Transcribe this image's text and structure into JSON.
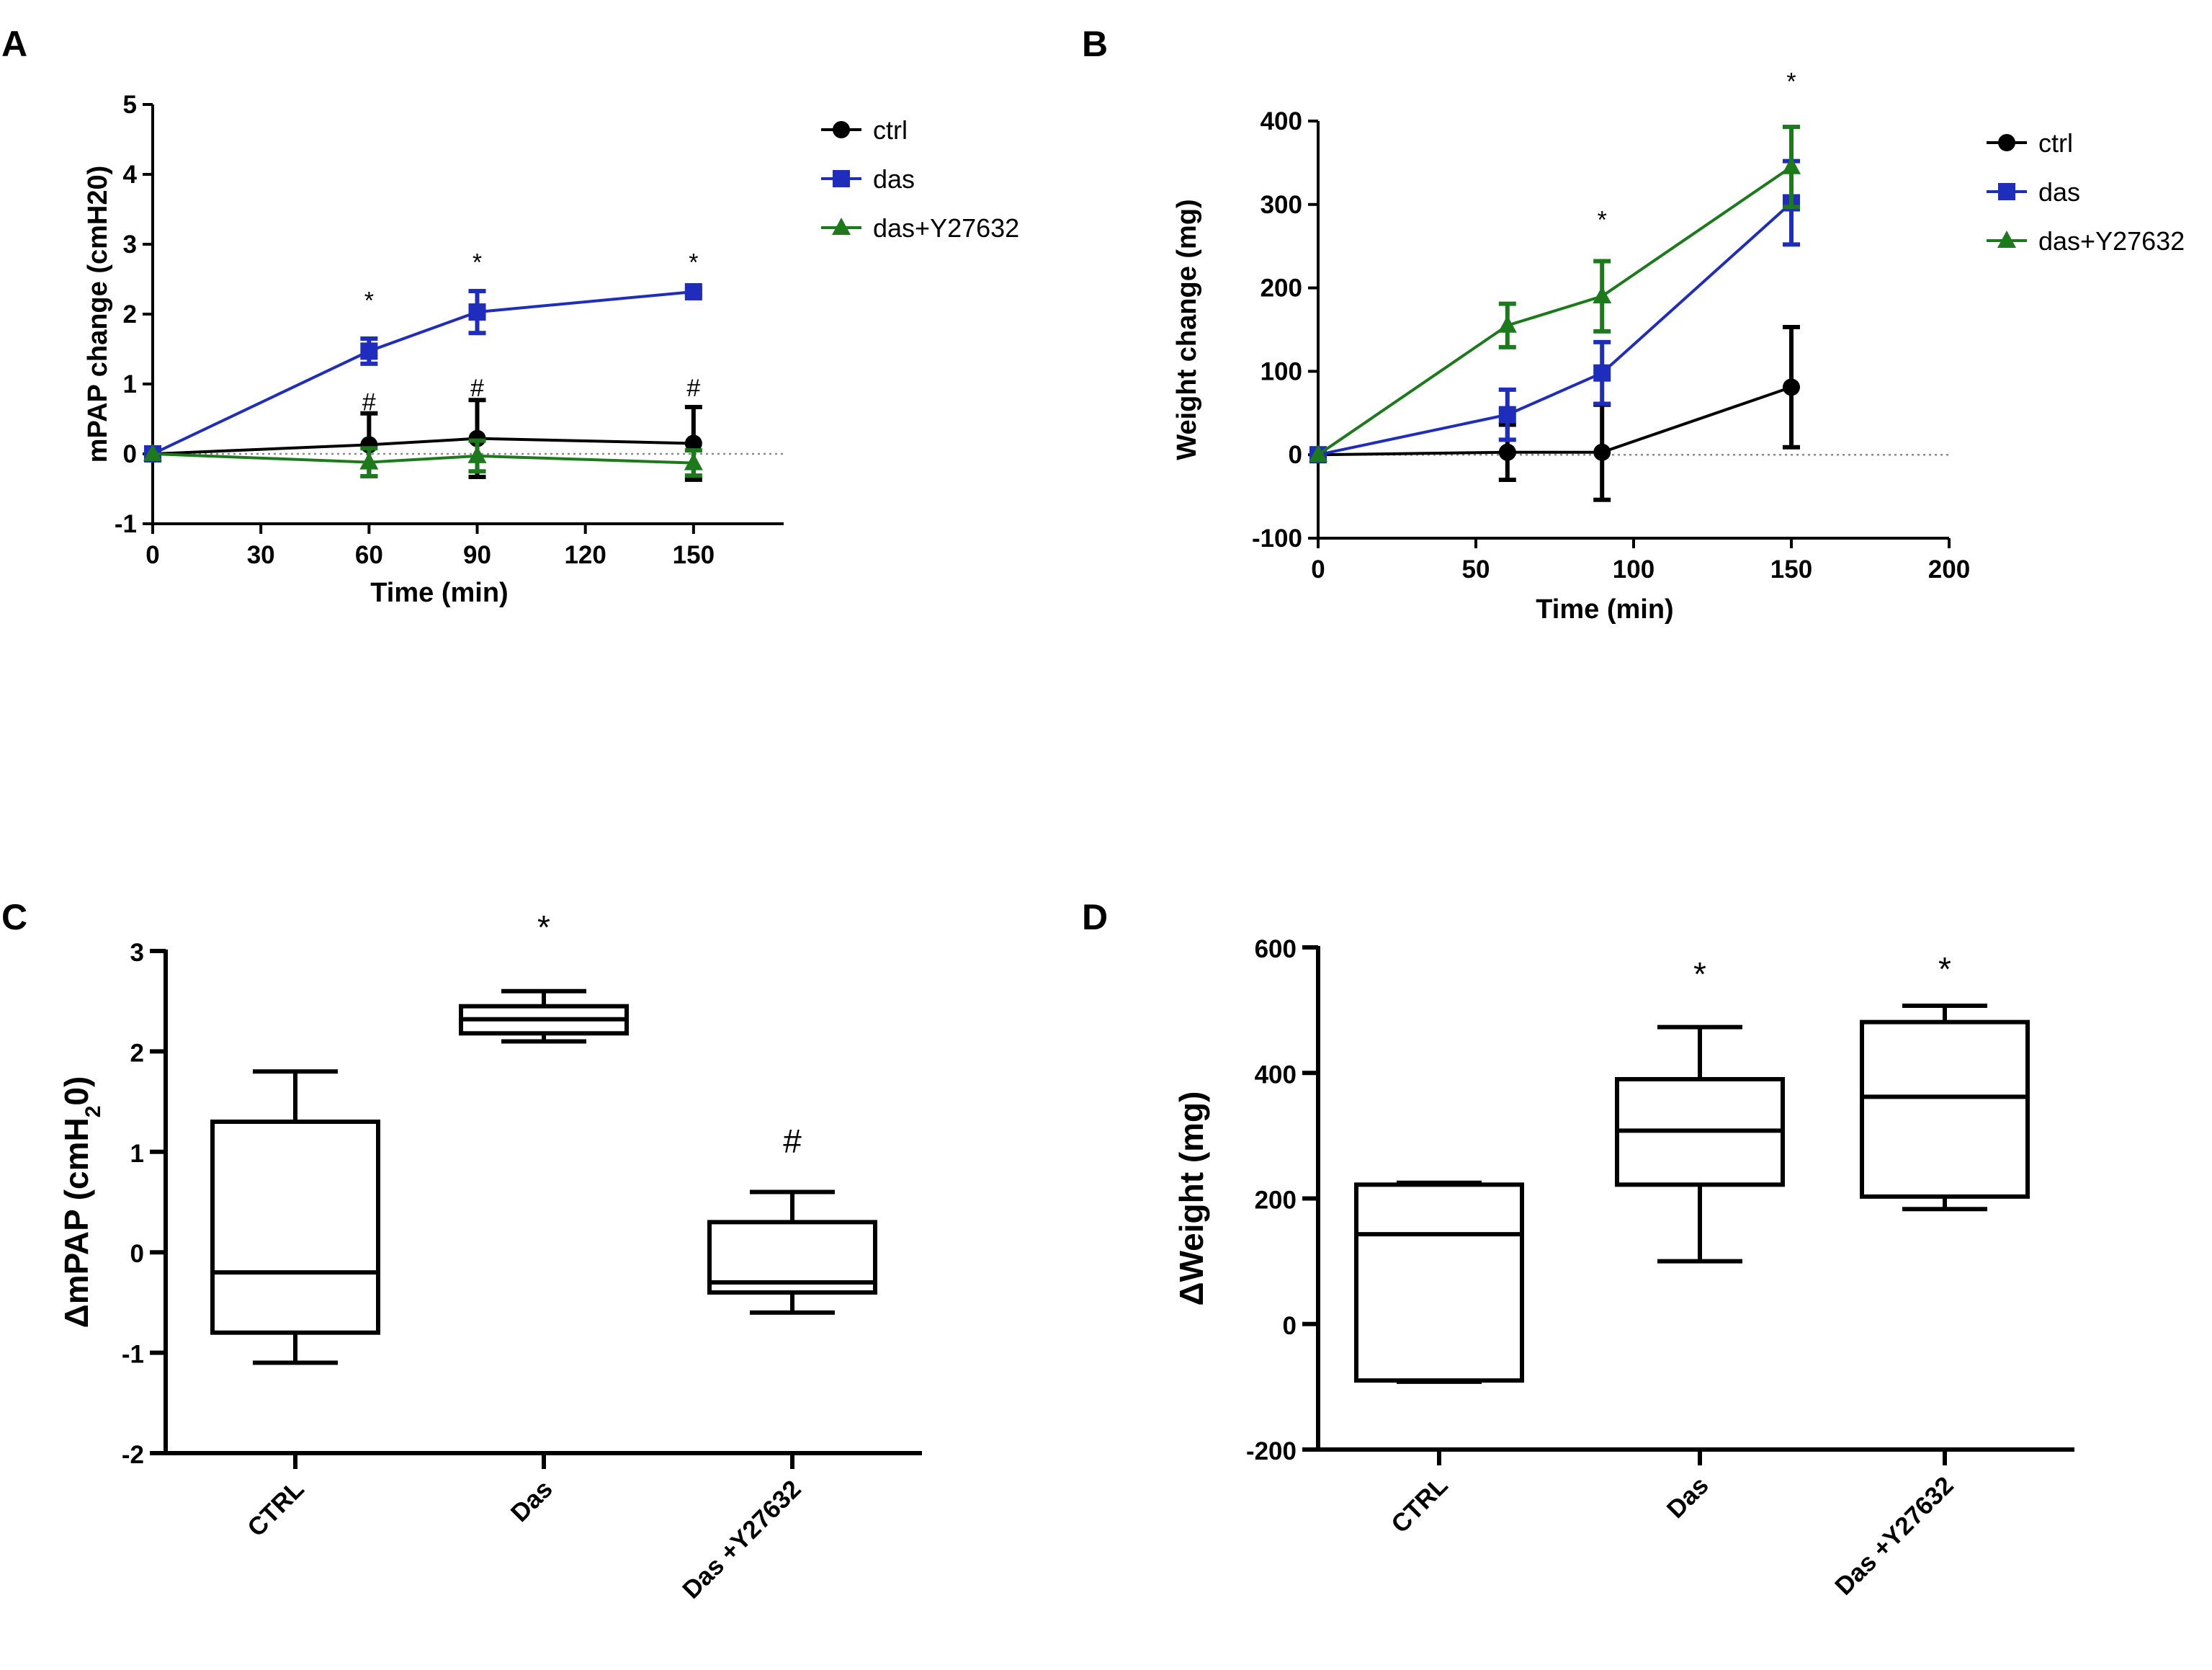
{
  "colors": {
    "ctrl": "#000000",
    "das": "#1f2dbd",
    "dasY": "#1c7a1c",
    "axis": "#000000",
    "zero_line": "#8a8a8a"
  },
  "chart_data": [
    {
      "panel": "A",
      "type": "line",
      "xlabel": "Time (min)",
      "ylabel": "mPAP change (cmH20)",
      "xlim": [
        0,
        175
      ],
      "ylim": [
        -1,
        5
      ],
      "xticks": [
        0,
        30,
        60,
        90,
        120,
        150
      ],
      "yticks": [
        -1,
        0,
        1,
        2,
        3,
        4,
        5
      ],
      "zero_line": true,
      "legend_position": "top-right",
      "series": [
        {
          "name": "ctrl",
          "marker": "circle",
          "color": "#000000",
          "x": [
            0,
            60,
            90,
            150
          ],
          "y": [
            0,
            0.13,
            0.22,
            0.15
          ],
          "err": [
            0,
            0.45,
            0.55,
            0.52
          ]
        },
        {
          "name": "das",
          "marker": "square",
          "color": "#1f2dbd",
          "x": [
            0,
            60,
            90,
            150
          ],
          "y": [
            0,
            1.47,
            2.03,
            2.32
          ],
          "err": [
            0,
            0.18,
            0.3,
            0.04
          ]
        },
        {
          "name": "das+Y27632",
          "marker": "triangle",
          "color": "#1c7a1c",
          "x": [
            0,
            60,
            90,
            150
          ],
          "y": [
            0,
            -0.12,
            -0.03,
            -0.13
          ],
          "err": [
            0,
            0.2,
            0.22,
            0.18
          ]
        }
      ],
      "annotations": [
        {
          "text": "*",
          "x": 60,
          "y": 2.2
        },
        {
          "text": "*",
          "x": 90,
          "y": 2.75
        },
        {
          "text": "*",
          "x": 150,
          "y": 2.75
        },
        {
          "text": "#",
          "x": 60,
          "y": 0.75
        },
        {
          "text": "#",
          "x": 90,
          "y": 0.95
        },
        {
          "text": "#",
          "x": 150,
          "y": 0.95
        }
      ]
    },
    {
      "panel": "B",
      "type": "line",
      "xlabel": "Time (min)",
      "ylabel": "Weight change (mg)",
      "xlim": [
        0,
        200
      ],
      "ylim": [
        -100,
        400
      ],
      "xticks": [
        0,
        50,
        100,
        150,
        200
      ],
      "yticks": [
        -100,
        0,
        100,
        200,
        300,
        400
      ],
      "zero_line": true,
      "legend_position": "top-right",
      "series": [
        {
          "name": "ctrl",
          "marker": "circle",
          "color": "#000000",
          "x": [
            0,
            60,
            90,
            150
          ],
          "y": [
            0,
            3,
            3,
            81
          ],
          "err": [
            0,
            33,
            57,
            72
          ]
        },
        {
          "name": "das",
          "marker": "square",
          "color": "#1f2dbd",
          "x": [
            0,
            60,
            90,
            150
          ],
          "y": [
            0,
            48,
            98,
            302
          ],
          "err": [
            0,
            30,
            37,
            50
          ]
        },
        {
          "name": "das+Y27632",
          "marker": "triangle",
          "color": "#1c7a1c",
          "x": [
            0,
            60,
            90,
            150
          ],
          "y": [
            0,
            155,
            190,
            345
          ],
          "err": [
            0,
            26,
            42,
            48
          ]
        }
      ],
      "annotations": [
        {
          "text": "*",
          "x": 90,
          "y": 282
        },
        {
          "text": "*",
          "x": 150,
          "y": 448
        }
      ]
    },
    {
      "panel": "C",
      "type": "box",
      "ylabel_prefix": "ΔmPAP (cmH",
      "ylabel_sub": "2",
      "ylabel_suffix": "0)",
      "ylim": [
        -2,
        3
      ],
      "yticks": [
        -2,
        -1,
        0,
        1,
        2,
        3
      ],
      "categories": [
        "CTRL",
        "Das",
        "Das +Y27632"
      ],
      "boxes": [
        {
          "min": -1.1,
          "q1": -0.8,
          "median": -0.2,
          "q3": 1.3,
          "max": 1.8
        },
        {
          "min": 2.1,
          "q1": 2.18,
          "median": 2.32,
          "q3": 2.45,
          "max": 2.6
        },
        {
          "min": -0.6,
          "q1": -0.4,
          "median": -0.3,
          "q3": 0.3,
          "max": 0.6
        }
      ],
      "annotations": [
        {
          "text": "*",
          "category": "Das",
          "y": 3.25
        },
        {
          "text": "#",
          "category": "Das +Y27632",
          "y": 1.12
        }
      ]
    },
    {
      "panel": "D",
      "type": "box",
      "ylabel": "ΔWeight (mg)",
      "ylim": [
        -200,
        600
      ],
      "yticks": [
        -200,
        0,
        200,
        400,
        600
      ],
      "categories": [
        "CTRL",
        "Das",
        "Das +Y27632"
      ],
      "boxes": [
        {
          "min": -92,
          "q1": -90,
          "median": 143,
          "q3": 222,
          "max": 225
        },
        {
          "min": 100,
          "q1": 222,
          "median": 308,
          "q3": 390,
          "max": 473
        },
        {
          "min": 183,
          "q1": 203,
          "median": 362,
          "q3": 481,
          "max": 507
        }
      ],
      "annotations": [
        {
          "text": "*",
          "category": "Das",
          "y": 560
        },
        {
          "text": "*",
          "category": "Das +Y27632",
          "y": 568
        }
      ]
    }
  ]
}
